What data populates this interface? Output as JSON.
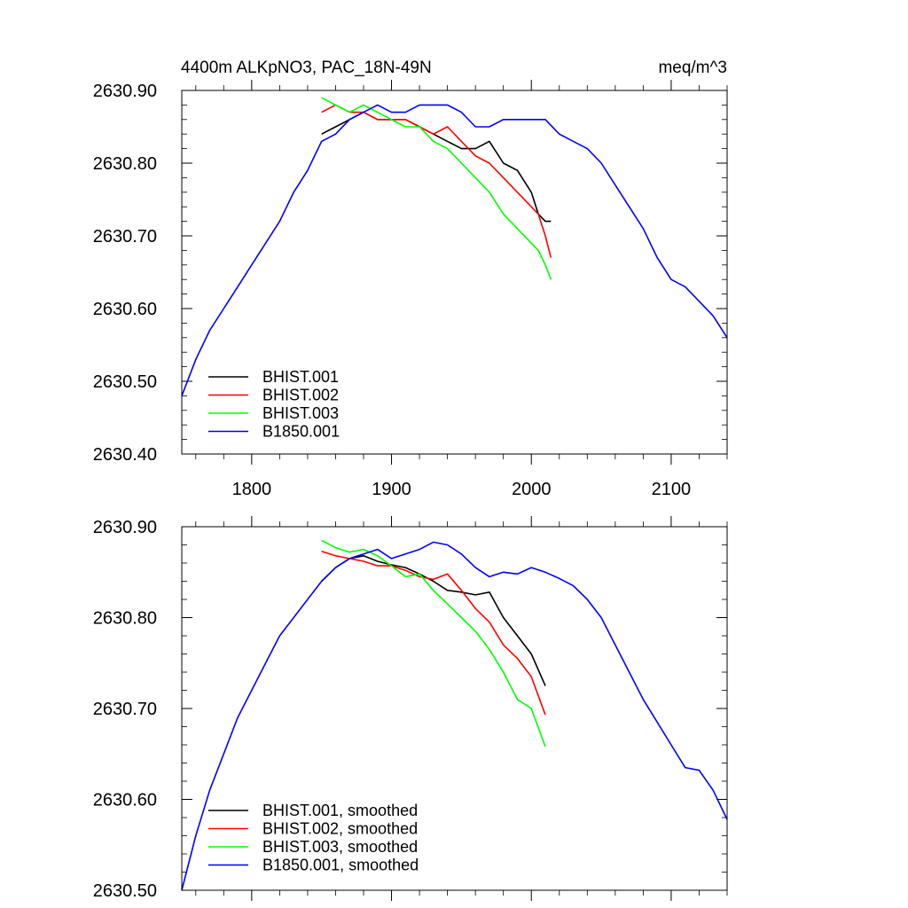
{
  "chart_data": [
    {
      "type": "line",
      "title": "4400m ALKpNO3, PAC_18N-49N",
      "units": "meq/m^3",
      "xlabel": "",
      "ylabel": "",
      "xlim": [
        1750,
        2140
      ],
      "ylim": [
        2630.4,
        2630.9
      ],
      "xticks": [
        1800,
        1900,
        2000,
        2100
      ],
      "xtick_labels": [
        "1800",
        "1900",
        "2000",
        "2100"
      ],
      "yticks": [
        2630.4,
        2630.5,
        2630.6,
        2630.7,
        2630.8,
        2630.9
      ],
      "ytick_labels": [
        "2630.40",
        "2630.50",
        "2630.60",
        "2630.70",
        "2630.80",
        "2630.90"
      ],
      "grid": false,
      "legend_position": "bottom-left",
      "series": [
        {
          "name": "BHIST.001",
          "color": "#000000",
          "x": [
            1850,
            1860,
            1870,
            1880,
            1890,
            1900,
            1910,
            1920,
            1930,
            1940,
            1950,
            1960,
            1970,
            1980,
            1990,
            2000,
            2005,
            2010,
            2014
          ],
          "y": [
            2630.84,
            2630.85,
            2630.86,
            2630.87,
            2630.86,
            2630.86,
            2630.86,
            2630.85,
            2630.84,
            2630.83,
            2630.82,
            2630.82,
            2630.83,
            2630.8,
            2630.79,
            2630.76,
            2630.73,
            2630.72,
            2630.72
          ]
        },
        {
          "name": "BHIST.002",
          "color": "#ff0000",
          "x": [
            1850,
            1860,
            1870,
            1880,
            1890,
            1900,
            1910,
            1920,
            1930,
            1940,
            1950,
            1960,
            1970,
            1980,
            1990,
            2000,
            2005,
            2010,
            2014
          ],
          "y": [
            2630.87,
            2630.88,
            2630.87,
            2630.87,
            2630.86,
            2630.86,
            2630.86,
            2630.85,
            2630.84,
            2630.85,
            2630.83,
            2630.81,
            2630.8,
            2630.78,
            2630.76,
            2630.74,
            2630.73,
            2630.7,
            2630.67
          ]
        },
        {
          "name": "BHIST.003",
          "color": "#00ff00",
          "x": [
            1850,
            1860,
            1870,
            1880,
            1890,
            1900,
            1910,
            1920,
            1930,
            1940,
            1950,
            1960,
            1970,
            1980,
            1990,
            2000,
            2005,
            2010,
            2014
          ],
          "y": [
            2630.89,
            2630.88,
            2630.87,
            2630.88,
            2630.87,
            2630.86,
            2630.85,
            2630.85,
            2630.83,
            2630.82,
            2630.8,
            2630.78,
            2630.76,
            2630.73,
            2630.71,
            2630.69,
            2630.68,
            2630.66,
            2630.64
          ]
        },
        {
          "name": "B1850.001",
          "color": "#0000ff",
          "x": [
            1750,
            1760,
            1770,
            1780,
            1790,
            1800,
            1810,
            1820,
            1830,
            1840,
            1850,
            1860,
            1870,
            1880,
            1890,
            1900,
            1910,
            1920,
            1930,
            1940,
            1950,
            1960,
            1970,
            1980,
            1990,
            2000,
            2010,
            2020,
            2030,
            2040,
            2050,
            2060,
            2070,
            2080,
            2090,
            2100,
            2110,
            2120,
            2130,
            2140
          ],
          "y": [
            2630.48,
            2630.53,
            2630.57,
            2630.6,
            2630.63,
            2630.66,
            2630.69,
            2630.72,
            2630.76,
            2630.79,
            2630.83,
            2630.84,
            2630.86,
            2630.87,
            2630.88,
            2630.87,
            2630.87,
            2630.88,
            2630.88,
            2630.88,
            2630.87,
            2630.85,
            2630.85,
            2630.86,
            2630.86,
            2630.86,
            2630.86,
            2630.84,
            2630.83,
            2630.82,
            2630.8,
            2630.77,
            2630.74,
            2630.71,
            2630.67,
            2630.64,
            2630.63,
            2630.61,
            2630.59,
            2630.56
          ]
        }
      ]
    },
    {
      "type": "line",
      "title": "",
      "xlim": [
        1750,
        2140
      ],
      "ylim": [
        2630.5,
        2630.9
      ],
      "xticks": [
        1800,
        1900,
        2000,
        2100
      ],
      "xtick_labels": [],
      "yticks": [
        2630.5,
        2630.6,
        2630.7,
        2630.8,
        2630.9
      ],
      "ytick_labels": [
        "2630.50",
        "2630.60",
        "2630.70",
        "2630.80",
        "2630.90"
      ],
      "grid": false,
      "legend_position": "bottom-left",
      "series": [
        {
          "name": "BHIST.001, smoothed",
          "color": "#000000",
          "x": [
            1850,
            1860,
            1870,
            1880,
            1890,
            1900,
            1910,
            1920,
            1930,
            1940,
            1950,
            1960,
            1970,
            1980,
            1990,
            2000,
            2010
          ],
          "y": [
            2630.84,
            2630.855,
            2630.865,
            2630.868,
            2630.862,
            2630.858,
            2630.855,
            2630.848,
            2630.84,
            2630.83,
            2630.828,
            2630.825,
            2630.828,
            2630.8,
            2630.78,
            2630.76,
            2630.725
          ]
        },
        {
          "name": "BHIST.002, smoothed",
          "color": "#ff0000",
          "x": [
            1850,
            1860,
            1870,
            1880,
            1890,
            1900,
            1910,
            1920,
            1930,
            1940,
            1950,
            1960,
            1970,
            1980,
            1990,
            2000,
            2010
          ],
          "y": [
            2630.873,
            2630.868,
            2630.865,
            2630.862,
            2630.857,
            2630.857,
            2630.852,
            2630.845,
            2630.842,
            2630.848,
            2630.83,
            2630.81,
            2630.795,
            2630.77,
            2630.755,
            2630.735,
            2630.693
          ]
        },
        {
          "name": "BHIST.003, smoothed",
          "color": "#00ff00",
          "x": [
            1850,
            1860,
            1870,
            1880,
            1890,
            1900,
            1910,
            1920,
            1930,
            1940,
            1950,
            1960,
            1970,
            1980,
            1990,
            2000,
            2010
          ],
          "y": [
            2630.885,
            2630.877,
            2630.872,
            2630.875,
            2630.868,
            2630.857,
            2630.845,
            2630.848,
            2630.83,
            2630.815,
            2630.8,
            2630.785,
            2630.765,
            2630.74,
            2630.71,
            2630.7,
            2630.658
          ]
        },
        {
          "name": "B1850.001, smoothed",
          "color": "#0000ff",
          "x": [
            1750,
            1760,
            1770,
            1780,
            1790,
            1800,
            1810,
            1820,
            1830,
            1840,
            1850,
            1860,
            1870,
            1880,
            1890,
            1900,
            1910,
            1920,
            1930,
            1940,
            1950,
            1960,
            1970,
            1980,
            1990,
            2000,
            2010,
            2020,
            2030,
            2040,
            2050,
            2060,
            2070,
            2080,
            2090,
            2100,
            2110,
            2120,
            2130,
            2140
          ],
          "y": [
            2630.5,
            2630.56,
            2630.61,
            2630.65,
            2630.69,
            2630.72,
            2630.75,
            2630.78,
            2630.8,
            2630.82,
            2630.84,
            2630.855,
            2630.865,
            2630.87,
            2630.875,
            2630.865,
            2630.87,
            2630.875,
            2630.883,
            2630.88,
            2630.87,
            2630.855,
            2630.845,
            2630.85,
            2630.848,
            2630.855,
            2630.85,
            2630.843,
            2630.835,
            2630.82,
            2630.8,
            2630.77,
            2630.74,
            2630.71,
            2630.685,
            2630.66,
            2630.635,
            2630.632,
            2630.61,
            2630.578
          ]
        }
      ]
    }
  ]
}
